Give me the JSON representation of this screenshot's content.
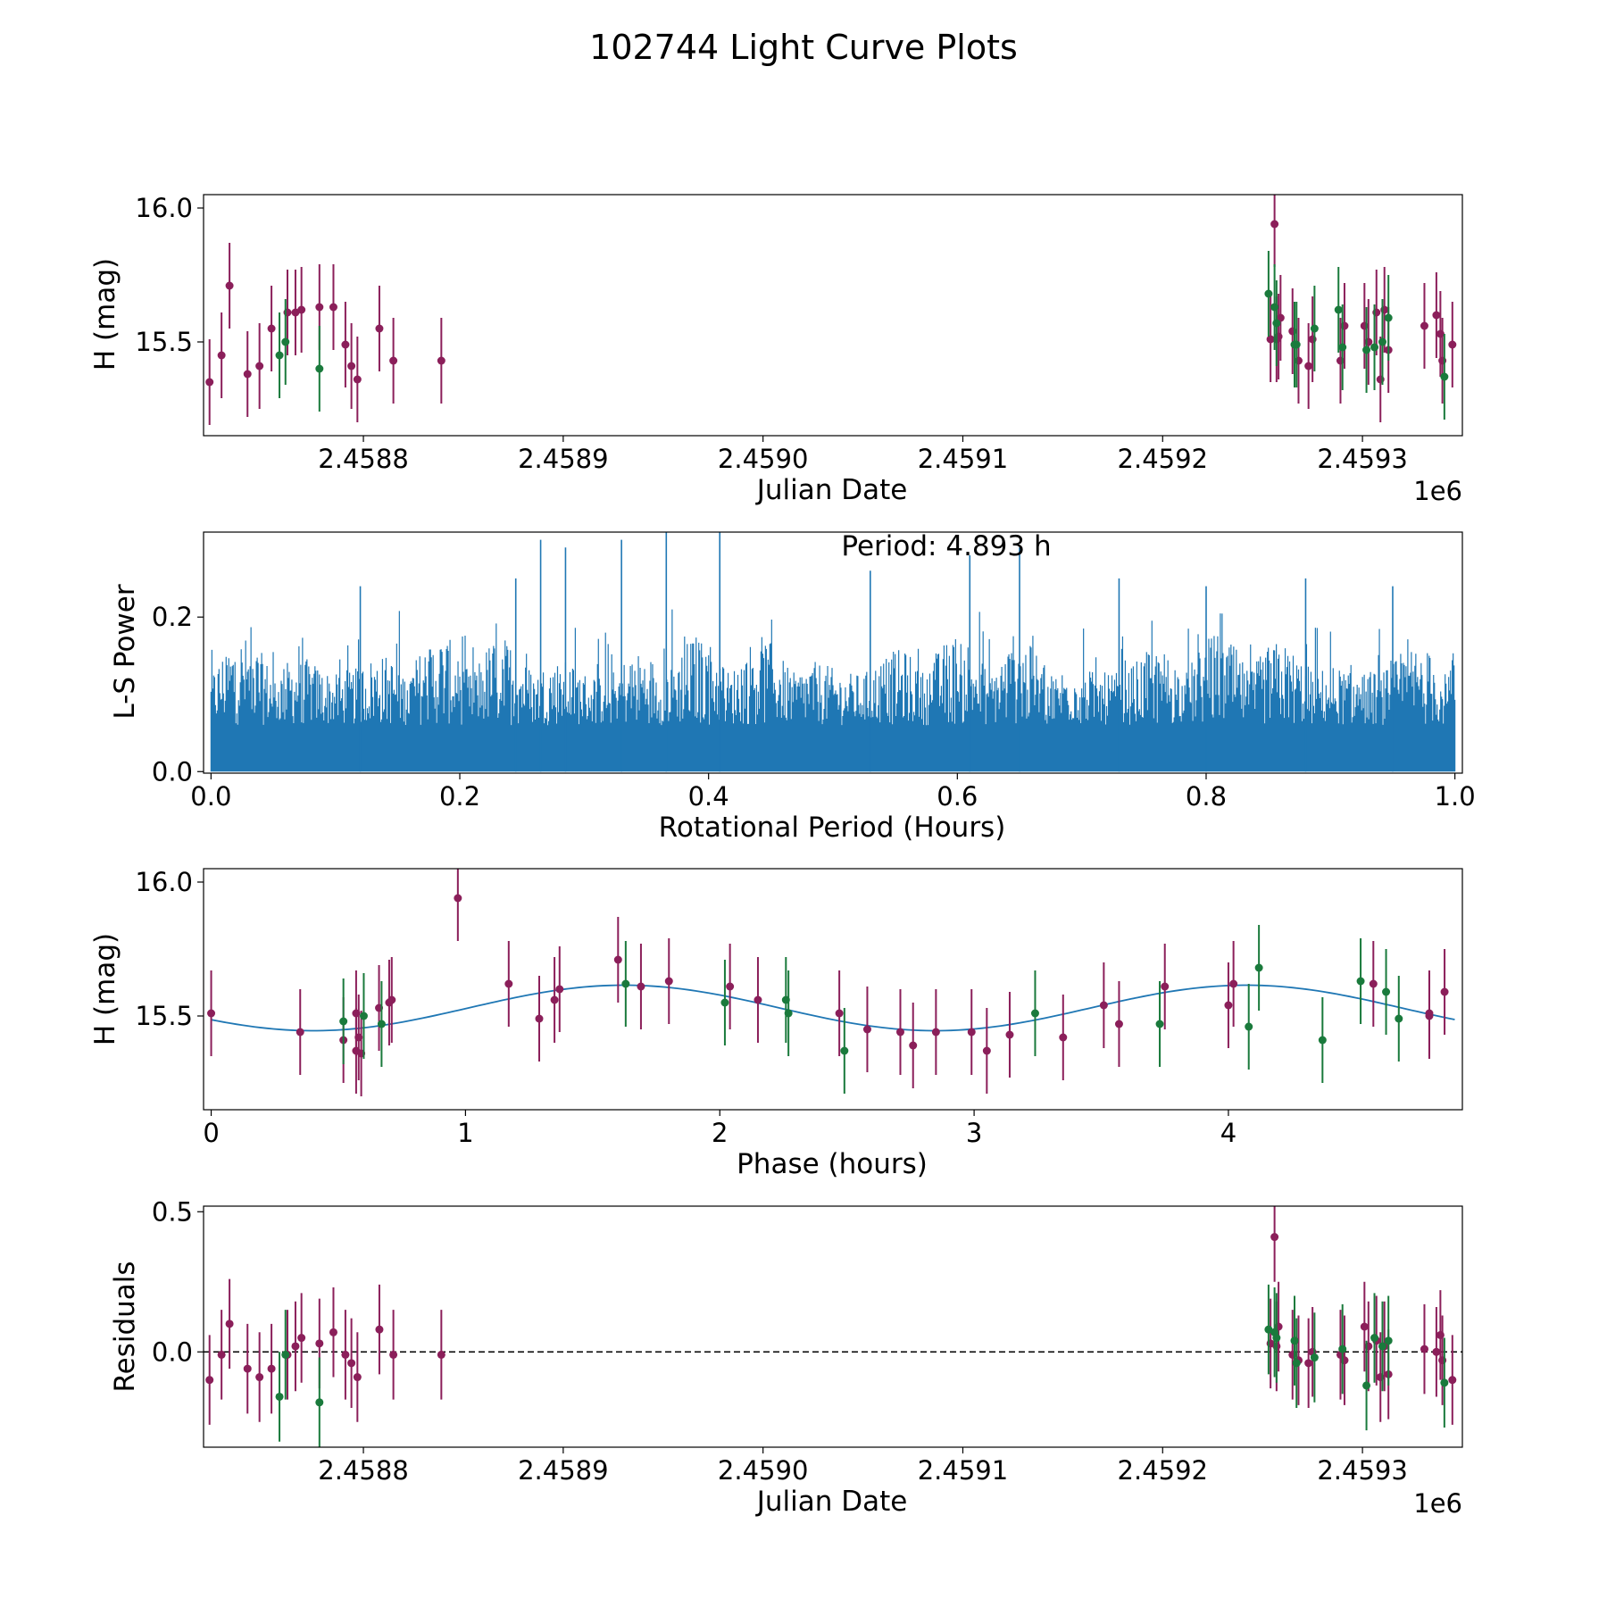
{
  "figure": {
    "title": "102744 Light Curve Plots"
  },
  "colors": {
    "maroon": "#8b1f5a",
    "green": "#1a7a3c",
    "blue": "#1f77b4",
    "axis": "#000000"
  },
  "chart_data": [
    {
      "id": "raw",
      "type": "scatter",
      "xlabel": "Julian Date",
      "ylabel": "H (mag)",
      "x_offset_label": "1e6",
      "xlim": [
        2.45872,
        2.45935
      ],
      "ylim": [
        15.15,
        16.05
      ],
      "xticks": [
        2.4588,
        2.4589,
        2.459,
        2.4591,
        2.4592,
        2.4593
      ],
      "xtick_labels": [
        "2.4588",
        "2.4589",
        "2.4590",
        "2.4591",
        "2.4592",
        "2.4593"
      ],
      "yticks": [
        15.5,
        16.0
      ],
      "ytick_labels": [
        "15.5",
        "16.0"
      ],
      "series": [
        {
          "name": "maroon",
          "color_key": "maroon",
          "err": 0.16,
          "points": [
            [
              2.458723,
              15.35
            ],
            [
              2.458729,
              15.45
            ],
            [
              2.458733,
              15.71
            ],
            [
              2.458742,
              15.38
            ],
            [
              2.458748,
              15.41
            ],
            [
              2.458754,
              15.55
            ],
            [
              2.458762,
              15.61
            ],
            [
              2.458766,
              15.61
            ],
            [
              2.458769,
              15.62
            ],
            [
              2.458778,
              15.63
            ],
            [
              2.458785,
              15.63
            ],
            [
              2.458791,
              15.49
            ],
            [
              2.458794,
              15.41
            ],
            [
              2.458797,
              15.36
            ],
            [
              2.458808,
              15.55
            ],
            [
              2.458815,
              15.43
            ],
            [
              2.458839,
              15.43
            ],
            [
              2.459254,
              15.51
            ],
            [
              2.459256,
              15.94
            ],
            [
              2.459257,
              15.51
            ],
            [
              2.459258,
              15.52
            ],
            [
              2.459259,
              15.59
            ],
            [
              2.459265,
              15.54
            ],
            [
              2.459268,
              15.43
            ],
            [
              2.459273,
              15.41
            ],
            [
              2.459275,
              15.51
            ],
            [
              2.459289,
              15.43
            ],
            [
              2.459291,
              15.56
            ],
            [
              2.459301,
              15.56
            ],
            [
              2.459303,
              15.5
            ],
            [
              2.459307,
              15.61
            ],
            [
              2.459309,
              15.36
            ],
            [
              2.459311,
              15.62
            ],
            [
              2.459313,
              15.47
            ],
            [
              2.459331,
              15.56
            ],
            [
              2.459337,
              15.6
            ],
            [
              2.459339,
              15.53
            ],
            [
              2.45934,
              15.43
            ],
            [
              2.459345,
              15.49
            ]
          ]
        },
        {
          "name": "green",
          "color_key": "green",
          "err": 0.16,
          "points": [
            [
              2.458758,
              15.45
            ],
            [
              2.458761,
              15.5
            ],
            [
              2.458778,
              15.4
            ],
            [
              2.459253,
              15.68
            ],
            [
              2.459256,
              15.63
            ],
            [
              2.459257,
              15.57
            ],
            [
              2.459266,
              15.49
            ],
            [
              2.459267,
              15.49
            ],
            [
              2.459276,
              15.55
            ],
            [
              2.459288,
              15.62
            ],
            [
              2.45929,
              15.48
            ],
            [
              2.459302,
              15.47
            ],
            [
              2.459306,
              15.48
            ],
            [
              2.45931,
              15.5
            ],
            [
              2.459313,
              15.59
            ],
            [
              2.459341,
              15.37
            ]
          ]
        }
      ]
    },
    {
      "id": "periodogram",
      "type": "line",
      "xlabel": "Rotational Period (Hours)",
      "ylabel": "L-S Power",
      "xlim": [
        -0.006,
        1.006
      ],
      "ylim": [
        -0.002,
        0.31
      ],
      "xticks": [
        0.0,
        0.2,
        0.4,
        0.6,
        0.8,
        1.0
      ],
      "xtick_labels": [
        "0.0",
        "0.2",
        "0.4",
        "0.6",
        "0.8",
        "1.0"
      ],
      "yticks": [
        0.0,
        0.2
      ],
      "ytick_labels": [
        "0.0",
        "0.2"
      ],
      "annotation": "Period: 4.893 h",
      "x_range": [
        0.0,
        1.0
      ],
      "baseline_power": 0.1,
      "peaks": [
        {
          "x": 0.265,
          "power": 0.3
        },
        {
          "x": 0.285,
          "power": 0.29
        },
        {
          "x": 0.33,
          "power": 0.3
        },
        {
          "x": 0.366,
          "power": 0.31
        },
        {
          "x": 0.409,
          "power": 0.31
        },
        {
          "x": 0.61,
          "power": 0.28
        },
        {
          "x": 0.65,
          "power": 0.29
        },
        {
          "x": 0.245,
          "power": 0.25
        },
        {
          "x": 0.12,
          "power": 0.24
        },
        {
          "x": 0.53,
          "power": 0.26
        },
        {
          "x": 0.73,
          "power": 0.25
        },
        {
          "x": 0.8,
          "power": 0.24
        },
        {
          "x": 0.88,
          "power": 0.25
        },
        {
          "x": 0.95,
          "power": 0.24
        }
      ]
    },
    {
      "id": "phased",
      "type": "scatter",
      "xlabel": "Phase (hours)",
      "ylabel": "H (mag)",
      "xlim": [
        -0.03,
        4.92
      ],
      "ylim": [
        15.15,
        16.05
      ],
      "xticks": [
        0,
        1,
        2,
        3,
        4
      ],
      "xtick_labels": [
        "0",
        "1",
        "2",
        "3",
        "4"
      ],
      "yticks": [
        15.5,
        16.0
      ],
      "ytick_labels": [
        "15.5",
        "16.0"
      ],
      "fit": {
        "mean": 15.53,
        "amplitude": 0.085,
        "period": 4.893,
        "phase_of_min": 0.4
      },
      "series": [
        {
          "name": "maroon",
          "color_key": "maroon",
          "err": 0.16,
          "points": [
            [
              0.0,
              15.51
            ],
            [
              0.35,
              15.44
            ],
            [
              0.52,
              15.41
            ],
            [
              0.57,
              15.37
            ],
            [
              0.57,
              15.51
            ],
            [
              0.58,
              15.42
            ],
            [
              0.59,
              15.36
            ],
            [
              0.66,
              15.53
            ],
            [
              0.7,
              15.55
            ],
            [
              0.71,
              15.56
            ],
            [
              0.97,
              15.94
            ],
            [
              1.17,
              15.62
            ],
            [
              1.29,
              15.49
            ],
            [
              1.35,
              15.56
            ],
            [
              1.37,
              15.6
            ],
            [
              1.6,
              15.71
            ],
            [
              1.69,
              15.61
            ],
            [
              1.8,
              15.63
            ],
            [
              2.04,
              15.61
            ],
            [
              2.15,
              15.56
            ],
            [
              2.47,
              15.51
            ],
            [
              2.58,
              15.45
            ],
            [
              2.71,
              15.44
            ],
            [
              2.76,
              15.39
            ],
            [
              2.85,
              15.44
            ],
            [
              2.99,
              15.44
            ],
            [
              3.05,
              15.37
            ],
            [
              3.14,
              15.43
            ],
            [
              3.35,
              15.42
            ],
            [
              3.51,
              15.54
            ],
            [
              3.57,
              15.47
            ],
            [
              3.75,
              15.61
            ],
            [
              4.0,
              15.54
            ],
            [
              4.02,
              15.62
            ],
            [
              4.57,
              15.62
            ],
            [
              4.79,
              15.51
            ],
            [
              4.79,
              15.5
            ],
            [
              4.85,
              15.59
            ]
          ]
        },
        {
          "name": "green",
          "color_key": "green",
          "err": 0.16,
          "points": [
            [
              0.52,
              15.48
            ],
            [
              0.6,
              15.5
            ],
            [
              0.67,
              15.47
            ],
            [
              1.63,
              15.62
            ],
            [
              2.02,
              15.55
            ],
            [
              2.26,
              15.56
            ],
            [
              2.27,
              15.51
            ],
            [
              2.49,
              15.37
            ],
            [
              3.24,
              15.51
            ],
            [
              3.73,
              15.47
            ],
            [
              4.08,
              15.46
            ],
            [
              4.12,
              15.68
            ],
            [
              4.37,
              15.41
            ],
            [
              4.52,
              15.63
            ],
            [
              4.62,
              15.59
            ],
            [
              4.67,
              15.49
            ]
          ]
        }
      ]
    },
    {
      "id": "residuals",
      "type": "scatter",
      "xlabel": "Julian Date",
      "ylabel": "Residuals",
      "x_offset_label": "1e6",
      "xlim": [
        2.45872,
        2.45935
      ],
      "ylim": [
        -0.34,
        0.52
      ],
      "xticks": [
        2.4588,
        2.4589,
        2.459,
        2.4591,
        2.4592,
        2.4593
      ],
      "xtick_labels": [
        "2.4588",
        "2.4589",
        "2.4590",
        "2.4591",
        "2.4592",
        "2.4593"
      ],
      "yticks": [
        0.0,
        0.5
      ],
      "ytick_labels": [
        "0.0",
        "0.5"
      ],
      "reference_line": 0.0,
      "series": [
        {
          "name": "maroon",
          "color_key": "maroon",
          "err": 0.16,
          "points": [
            [
              2.458723,
              -0.1
            ],
            [
              2.458729,
              -0.01
            ],
            [
              2.458733,
              0.1
            ],
            [
              2.458742,
              -0.06
            ],
            [
              2.458748,
              -0.09
            ],
            [
              2.458754,
              -0.06
            ],
            [
              2.458762,
              -0.01
            ],
            [
              2.458766,
              0.02
            ],
            [
              2.458769,
              0.05
            ],
            [
              2.458778,
              0.03
            ],
            [
              2.458785,
              0.07
            ],
            [
              2.458791,
              -0.01
            ],
            [
              2.458794,
              -0.04
            ],
            [
              2.458797,
              -0.09
            ],
            [
              2.458808,
              0.08
            ],
            [
              2.458815,
              -0.01
            ],
            [
              2.458839,
              -0.01
            ],
            [
              2.459254,
              0.03
            ],
            [
              2.459256,
              0.41
            ],
            [
              2.459257,
              0.02
            ],
            [
              2.459258,
              0.09
            ],
            [
              2.459265,
              -0.01
            ],
            [
              2.459268,
              -0.03
            ],
            [
              2.459273,
              -0.04
            ],
            [
              2.459275,
              0.0
            ],
            [
              2.459289,
              -0.01
            ],
            [
              2.459291,
              -0.03
            ],
            [
              2.459301,
              0.09
            ],
            [
              2.459303,
              0.02
            ],
            [
              2.459307,
              0.04
            ],
            [
              2.459309,
              -0.09
            ],
            [
              2.459311,
              0.02
            ],
            [
              2.459313,
              -0.08
            ],
            [
              2.459331,
              0.01
            ],
            [
              2.459337,
              0.0
            ],
            [
              2.459339,
              0.06
            ],
            [
              2.45934,
              -0.03
            ],
            [
              2.459345,
              -0.1
            ]
          ]
        },
        {
          "name": "green",
          "color_key": "green",
          "err": 0.16,
          "points": [
            [
              2.458758,
              -0.16
            ],
            [
              2.458761,
              -0.01
            ],
            [
              2.458778,
              -0.18
            ],
            [
              2.459253,
              0.08
            ],
            [
              2.459256,
              0.07
            ],
            [
              2.459257,
              0.05
            ],
            [
              2.459266,
              0.04
            ],
            [
              2.459267,
              -0.04
            ],
            [
              2.459276,
              -0.02
            ],
            [
              2.45929,
              0.01
            ],
            [
              2.459302,
              -0.12
            ],
            [
              2.459306,
              0.05
            ],
            [
              2.45931,
              0.02
            ],
            [
              2.459313,
              0.04
            ],
            [
              2.459341,
              -0.11
            ]
          ]
        }
      ]
    }
  ]
}
